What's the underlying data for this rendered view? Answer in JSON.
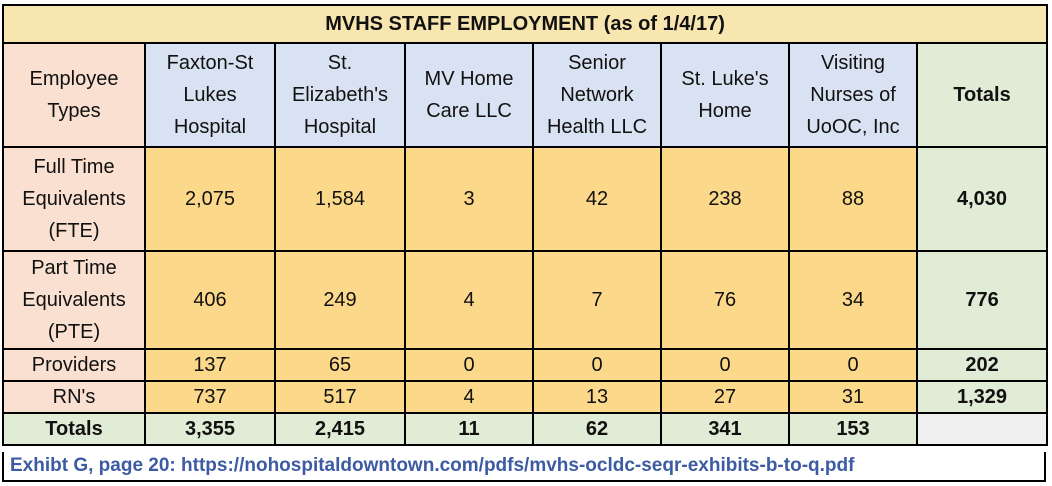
{
  "title": "MVHS STAFF EMPLOYMENT (as of 1/4/17)",
  "header": {
    "row_label": [
      "Employee",
      "Types"
    ],
    "columns": [
      [
        "Faxton-St",
        "Lukes",
        "Hospital"
      ],
      [
        "St.",
        "Elizabeth's",
        "Hospital"
      ],
      [
        "MV Home",
        "Care LLC"
      ],
      [
        "Senior",
        "Network",
        "Health LLC"
      ],
      [
        "St. Luke's",
        "Home"
      ],
      [
        "Visiting",
        "Nurses of",
        "UoOC, Inc"
      ]
    ],
    "totals": "Totals"
  },
  "rows": [
    {
      "label": [
        "Full Time",
        "Equivalents",
        "(FTE)"
      ],
      "values": [
        "2,075",
        "1,584",
        "3",
        "42",
        "238",
        "88"
      ],
      "total": "4,030"
    },
    {
      "label": [
        "Part Time",
        "Equivalents",
        "(PTE)"
      ],
      "values": [
        "406",
        "249",
        "4",
        "7",
        "76",
        "34"
      ],
      "total": "776"
    },
    {
      "label": [
        "Providers"
      ],
      "values": [
        "137",
        "65",
        "0",
        "0",
        "0",
        "0"
      ],
      "total": "202"
    },
    {
      "label": [
        "RN's"
      ],
      "values": [
        "737",
        "517",
        "4",
        "13",
        "27",
        "31"
      ],
      "total": "1,329"
    }
  ],
  "totals_row": {
    "label": "Totals",
    "values": [
      "3,355",
      "2,415",
      "11",
      "62",
      "341",
      "153"
    ]
  },
  "footer": "Exhibt G, page 20: https://nohospitaldowntown.com/pdfs/mvhs-ocldc-seqr-exhibits-b-to-q.pdf"
}
